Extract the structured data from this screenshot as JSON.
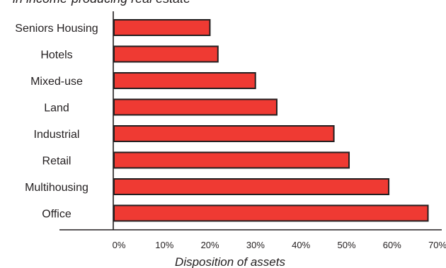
{
  "chart_data": {
    "type": "bar",
    "orientation": "horizontal",
    "title": "",
    "subtitle": "in income-producing real estate",
    "xlabel": "Disposition of assets",
    "ylabel": "",
    "categories": [
      "Seniors Housing",
      "Hotels",
      "Mixed-use",
      "Land",
      "Industrial",
      "Retail",
      "Multihousing",
      "Office"
    ],
    "values": [
      21.5,
      23.3,
      31.7,
      36.5,
      49.3,
      52.7,
      61.6,
      70.4
    ],
    "xlim": [
      0,
      70
    ],
    "xticks": [
      "0%",
      "10%",
      "20%",
      "30%",
      "40%",
      "50%",
      "60%",
      "70%"
    ],
    "grid": false,
    "legend": "none",
    "colors": {
      "bar_fill": "#ef3a33",
      "bar_stroke": "#231f20",
      "axis": "#231f20",
      "text": "#231f20"
    }
  }
}
